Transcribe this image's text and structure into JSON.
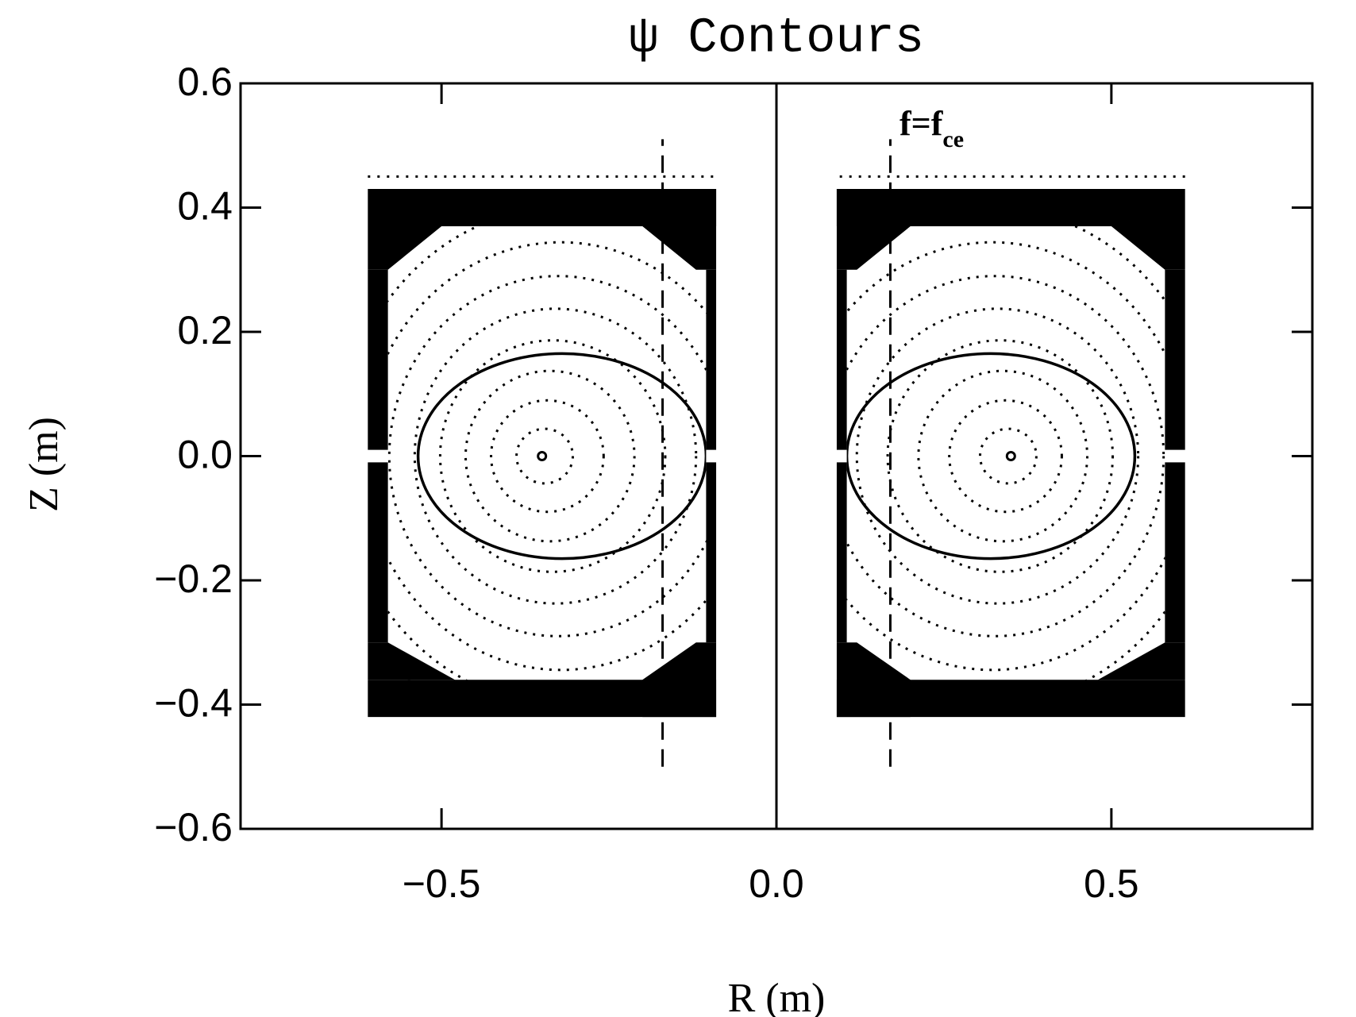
{
  "chart_data": {
    "type": "contour",
    "title": "ψ  Contours",
    "xlabel": "R (m)",
    "ylabel": "Z (m)",
    "annotation": {
      "text": "f=f",
      "subscript": "ce"
    },
    "xlim": [
      -0.8,
      0.8
    ],
    "ylim": [
      -0.6,
      0.6
    ],
    "xticks": [
      {
        "value": -0.5,
        "label": "−0.5"
      },
      {
        "value": 0,
        "label": "0.0"
      },
      {
        "value": 0.5,
        "label": "0.5"
      }
    ],
    "yticks": [
      {
        "value": -0.6,
        "label": "−0.6"
      },
      {
        "value": -0.4,
        "label": "−0.4"
      },
      {
        "value": -0.2,
        "label": "−0.2"
      },
      {
        "value": 0,
        "label": "0.0"
      },
      {
        "value": 0.2,
        "label": "0.2"
      },
      {
        "value": 0.4,
        "label": "0.4"
      },
      {
        "value": 0.6,
        "label": "0.6"
      }
    ],
    "resonance_r": [
      -0.17,
      0.17
    ],
    "resonance_z": [
      -0.5,
      0.51
    ],
    "magnetic_axis_r": [
      -0.35,
      0.35
    ],
    "magnetic_axis_z": 0,
    "color": "#000000"
  }
}
